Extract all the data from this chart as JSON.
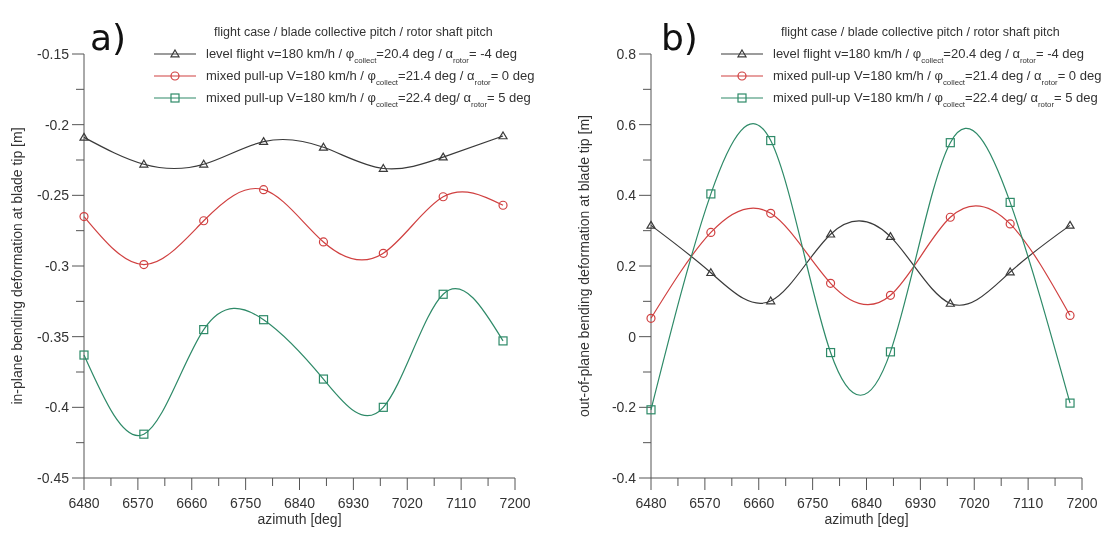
{
  "chart_data": [
    {
      "type": "line",
      "title": "a)",
      "xlabel": "azimuth [deg]",
      "ylabel": "in-plane bending deformation at blade tip [m]",
      "legend_title": "flight case / blade collective pitch / rotor shaft pitch",
      "legend": "top right",
      "grid": false,
      "xlim": [
        6480,
        7200
      ],
      "xticks": [
        6480,
        {
          "value": 6525,
          "label": null
        },
        6570,
        {
          "value": 6615,
          "label": null
        },
        6660,
        {
          "value": 6705,
          "label": null
        },
        6750,
        {
          "value": 6795,
          "label": null
        },
        6840,
        {
          "value": 6885,
          "label": null
        },
        6930,
        {
          "value": 6975,
          "label": null
        },
        7020,
        {
          "value": 7065,
          "label": null
        },
        7110,
        {
          "value": 7155,
          "label": null
        },
        7200
      ],
      "ylim": [
        -0.45,
        -0.15
      ],
      "yticks": [
        -0.45,
        {
          "value": -0.425,
          "label": null
        },
        -0.4,
        {
          "value": -0.375,
          "label": null
        },
        -0.35,
        {
          "value": -0.325,
          "label": null
        },
        -0.3,
        {
          "value": -0.275,
          "label": null
        },
        -0.25,
        {
          "value": -0.225,
          "label": null
        },
        -0.2,
        {
          "value": -0.175,
          "label": null
        },
        -0.15
      ],
      "x": [
        6480,
        6580,
        6680,
        6780,
        6880,
        6980,
        7080,
        7180
      ],
      "series": [
        {
          "name": "level flight v=180 km/h / φ$_{collect}$=20.4 deg / α$_{rotor}$= -4 deg",
          "color": "#3a3a3a",
          "marker": "triangle",
          "values": [
            -0.209,
            -0.228,
            -0.228,
            -0.212,
            -0.216,
            -0.231,
            -0.223,
            -0.208
          ]
        },
        {
          "name": "mixed pull-up V=180 km/h / φ$_{collect}$=21.4 deg / α$_{rotor}$= 0 deg",
          "color": "#d04040",
          "marker": "circle",
          "values": [
            -0.265,
            -0.299,
            -0.268,
            -0.246,
            -0.283,
            -0.291,
            -0.251,
            -0.257
          ]
        },
        {
          "name": "mixed pull-up V=180 km/h / φ$_{collect}$=22.4 deg/ α$_{rotor}$= 5 deg",
          "color": "#2e8a68",
          "marker": "square",
          "values": [
            -0.363,
            -0.419,
            -0.345,
            -0.338,
            -0.38,
            -0.4,
            -0.32,
            -0.353
          ]
        }
      ]
    },
    {
      "type": "line",
      "title": "b)",
      "xlabel": "azimuth [deg]",
      "ylabel": "out-of-plane bending deformation at blade tip [m]",
      "legend_title": "flight case / blade collective pitch / rotor shaft pitch",
      "legend": "top right",
      "grid": false,
      "xlim": [
        6480,
        7200
      ],
      "xticks": [
        6480,
        {
          "value": 6525,
          "label": null
        },
        6570,
        {
          "value": 6615,
          "label": null
        },
        6660,
        {
          "value": 6705,
          "label": null
        },
        6750,
        {
          "value": 6795,
          "label": null
        },
        6840,
        {
          "value": 6885,
          "label": null
        },
        6930,
        {
          "value": 6975,
          "label": null
        },
        7020,
        {
          "value": 7065,
          "label": null
        },
        7110,
        {
          "value": 7155,
          "label": null
        },
        7200
      ],
      "ylim": [
        -0.4,
        0.8
      ],
      "yticks": [
        -0.4,
        {
          "value": -0.3,
          "label": null
        },
        -0.2,
        {
          "value": -0.1,
          "label": null
        },
        0,
        {
          "value": 0.1,
          "label": null
        },
        0.2,
        {
          "value": 0.3,
          "label": null
        },
        0.4,
        {
          "value": 0.5,
          "label": null
        },
        0.6,
        {
          "value": 0.7,
          "label": null
        },
        0.8
      ],
      "x": [
        6480,
        6580,
        6680,
        6780,
        6880,
        6980,
        7080,
        7180
      ],
      "series": [
        {
          "name": "level flight v=180 km/h / φ$_{collect}$=20.4 deg / α$_{rotor}$= -4 deg",
          "color": "#3a3a3a",
          "marker": "triangle",
          "values": [
            0.315,
            0.181,
            0.101,
            0.29,
            0.283,
            0.094,
            0.183,
            0.315
          ]
        },
        {
          "name": "mixed pull-up V=180 km/h / φ$_{collect}$=21.4 deg / α$_{rotor}$= 0 deg",
          "color": "#d04040",
          "marker": "circle",
          "values": [
            0.052,
            0.295,
            0.349,
            0.151,
            0.117,
            0.338,
            0.319,
            0.06
          ]
        },
        {
          "name": "mixed pull-up V=180 km/h / φ$_{collect}$=22.4 deg/ α$_{rotor}$= 5 deg",
          "color": "#2e8a68",
          "marker": "square",
          "values": [
            -0.207,
            0.404,
            0.555,
            -0.045,
            -0.043,
            0.549,
            0.38,
            -0.188
          ]
        }
      ]
    }
  ]
}
